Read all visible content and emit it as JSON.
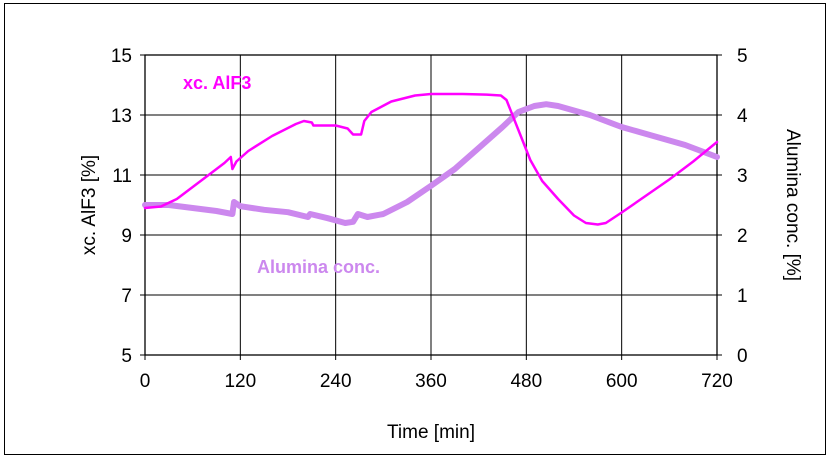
{
  "chart_data": {
    "type": "line",
    "title": "",
    "xlabel": "Time [min]",
    "ylabel_left": "xc. AlF3 [%]",
    "ylabel_right": "Alumina conc. [%]",
    "xlim": [
      0,
      720
    ],
    "ylim_left": [
      5,
      15
    ],
    "ylim_right": [
      0,
      5
    ],
    "xticks": [
      "0",
      "120",
      "240",
      "360",
      "480",
      "600",
      "720"
    ],
    "yticks_left": [
      "5",
      "7",
      "9",
      "11",
      "13",
      "15"
    ],
    "yticks_right": [
      "0",
      "1",
      "2",
      "3",
      "4",
      "5"
    ],
    "grid": true,
    "legend": "none (in-plot labels)",
    "series": [
      {
        "name": "xc. AlF3",
        "axis": "left",
        "color": "#ff00ff",
        "points": [
          [
            0,
            9.9
          ],
          [
            20,
            9.95
          ],
          [
            40,
            10.2
          ],
          [
            60,
            10.6
          ],
          [
            80,
            11.0
          ],
          [
            100,
            11.4
          ],
          [
            108,
            11.6
          ],
          [
            110,
            11.2
          ],
          [
            115,
            11.45
          ],
          [
            130,
            11.8
          ],
          [
            160,
            12.3
          ],
          [
            190,
            12.7
          ],
          [
            200,
            12.8
          ],
          [
            210,
            12.75
          ],
          [
            212,
            12.65
          ],
          [
            240,
            12.65
          ],
          [
            255,
            12.55
          ],
          [
            262,
            12.35
          ],
          [
            272,
            12.35
          ],
          [
            276,
            12.8
          ],
          [
            285,
            13.1
          ],
          [
            310,
            13.45
          ],
          [
            340,
            13.65
          ],
          [
            360,
            13.7
          ],
          [
            400,
            13.7
          ],
          [
            430,
            13.68
          ],
          [
            448,
            13.65
          ],
          [
            455,
            13.5
          ],
          [
            470,
            12.5
          ],
          [
            485,
            11.5
          ],
          [
            500,
            10.8
          ],
          [
            520,
            10.2
          ],
          [
            540,
            9.65
          ],
          [
            555,
            9.4
          ],
          [
            570,
            9.35
          ],
          [
            580,
            9.4
          ],
          [
            600,
            9.75
          ],
          [
            630,
            10.3
          ],
          [
            660,
            10.85
          ],
          [
            690,
            11.45
          ],
          [
            720,
            12.1
          ]
        ]
      },
      {
        "name": "Alumina conc.",
        "axis": "right",
        "color": "#cc88ee",
        "points": [
          [
            0,
            2.5
          ],
          [
            30,
            2.5
          ],
          [
            60,
            2.45
          ],
          [
            90,
            2.4
          ],
          [
            110,
            2.35
          ],
          [
            112,
            2.55
          ],
          [
            120,
            2.48
          ],
          [
            150,
            2.42
          ],
          [
            180,
            2.38
          ],
          [
            205,
            2.3
          ],
          [
            208,
            2.35
          ],
          [
            230,
            2.28
          ],
          [
            252,
            2.2
          ],
          [
            262,
            2.22
          ],
          [
            268,
            2.35
          ],
          [
            280,
            2.3
          ],
          [
            300,
            2.35
          ],
          [
            330,
            2.55
          ],
          [
            360,
            2.82
          ],
          [
            390,
            3.1
          ],
          [
            420,
            3.45
          ],
          [
            450,
            3.8
          ],
          [
            470,
            4.05
          ],
          [
            490,
            4.15
          ],
          [
            505,
            4.18
          ],
          [
            520,
            4.15
          ],
          [
            560,
            4.0
          ],
          [
            600,
            3.8
          ],
          [
            640,
            3.65
          ],
          [
            680,
            3.5
          ],
          [
            700,
            3.4
          ],
          [
            720,
            3.3
          ]
        ]
      }
    ],
    "annotations": [
      {
        "text": "xc. AlF3",
        "color": "#ff00ff"
      },
      {
        "text": "Alumina conc.",
        "color": "#cc88ee"
      }
    ]
  }
}
